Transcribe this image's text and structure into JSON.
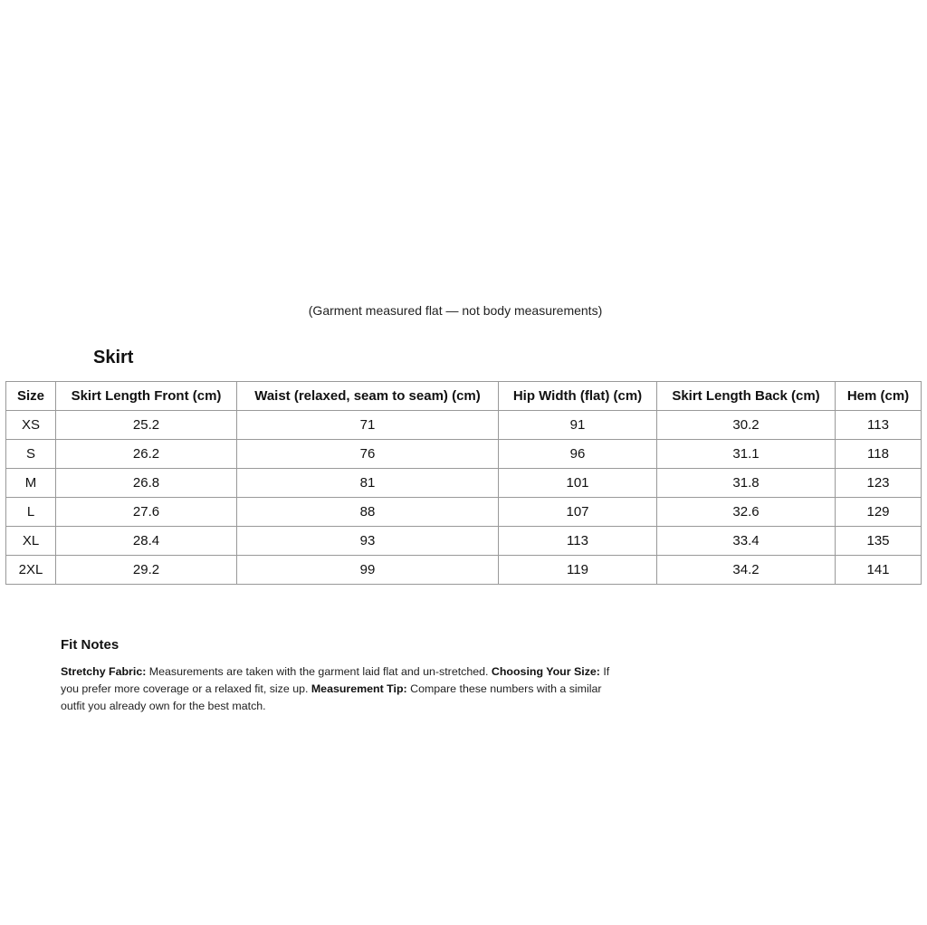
{
  "subtitle": "(Garment measured flat — not body measurements)",
  "title": "Skirt",
  "table": {
    "headers": [
      "Size",
      "Skirt Length Front (cm)",
      "Waist (relaxed, seam to seam) (cm)",
      "Hip Width (flat) (cm)",
      "Skirt Length Back (cm)",
      "Hem (cm)"
    ],
    "rows": [
      [
        "XS",
        "25.2",
        "71",
        "91",
        "30.2",
        "113"
      ],
      [
        "S",
        "26.2",
        "76",
        "96",
        "31.1",
        "118"
      ],
      [
        "M",
        "26.8",
        "81",
        "101",
        "31.8",
        "123"
      ],
      [
        "L",
        "27.6",
        "88",
        "107",
        "32.6",
        "129"
      ],
      [
        "XL",
        "28.4",
        "93",
        "113",
        "33.4",
        "135"
      ],
      [
        "2XL",
        "29.2",
        "99",
        "119",
        "34.2",
        "141"
      ]
    ]
  },
  "fit_notes": {
    "title": "Fit Notes",
    "items": [
      {
        "label": "Stretchy Fabric:",
        "text": " Measurements are taken with the garment laid flat and un-stretched. "
      },
      {
        "label": "Choosing Your Size:",
        "text": " If you prefer more coverage or a relaxed fit, size up. "
      },
      {
        "label": "Measurement Tip:",
        "text": " Compare these numbers with a similar outfit you already own for the best match."
      }
    ]
  }
}
